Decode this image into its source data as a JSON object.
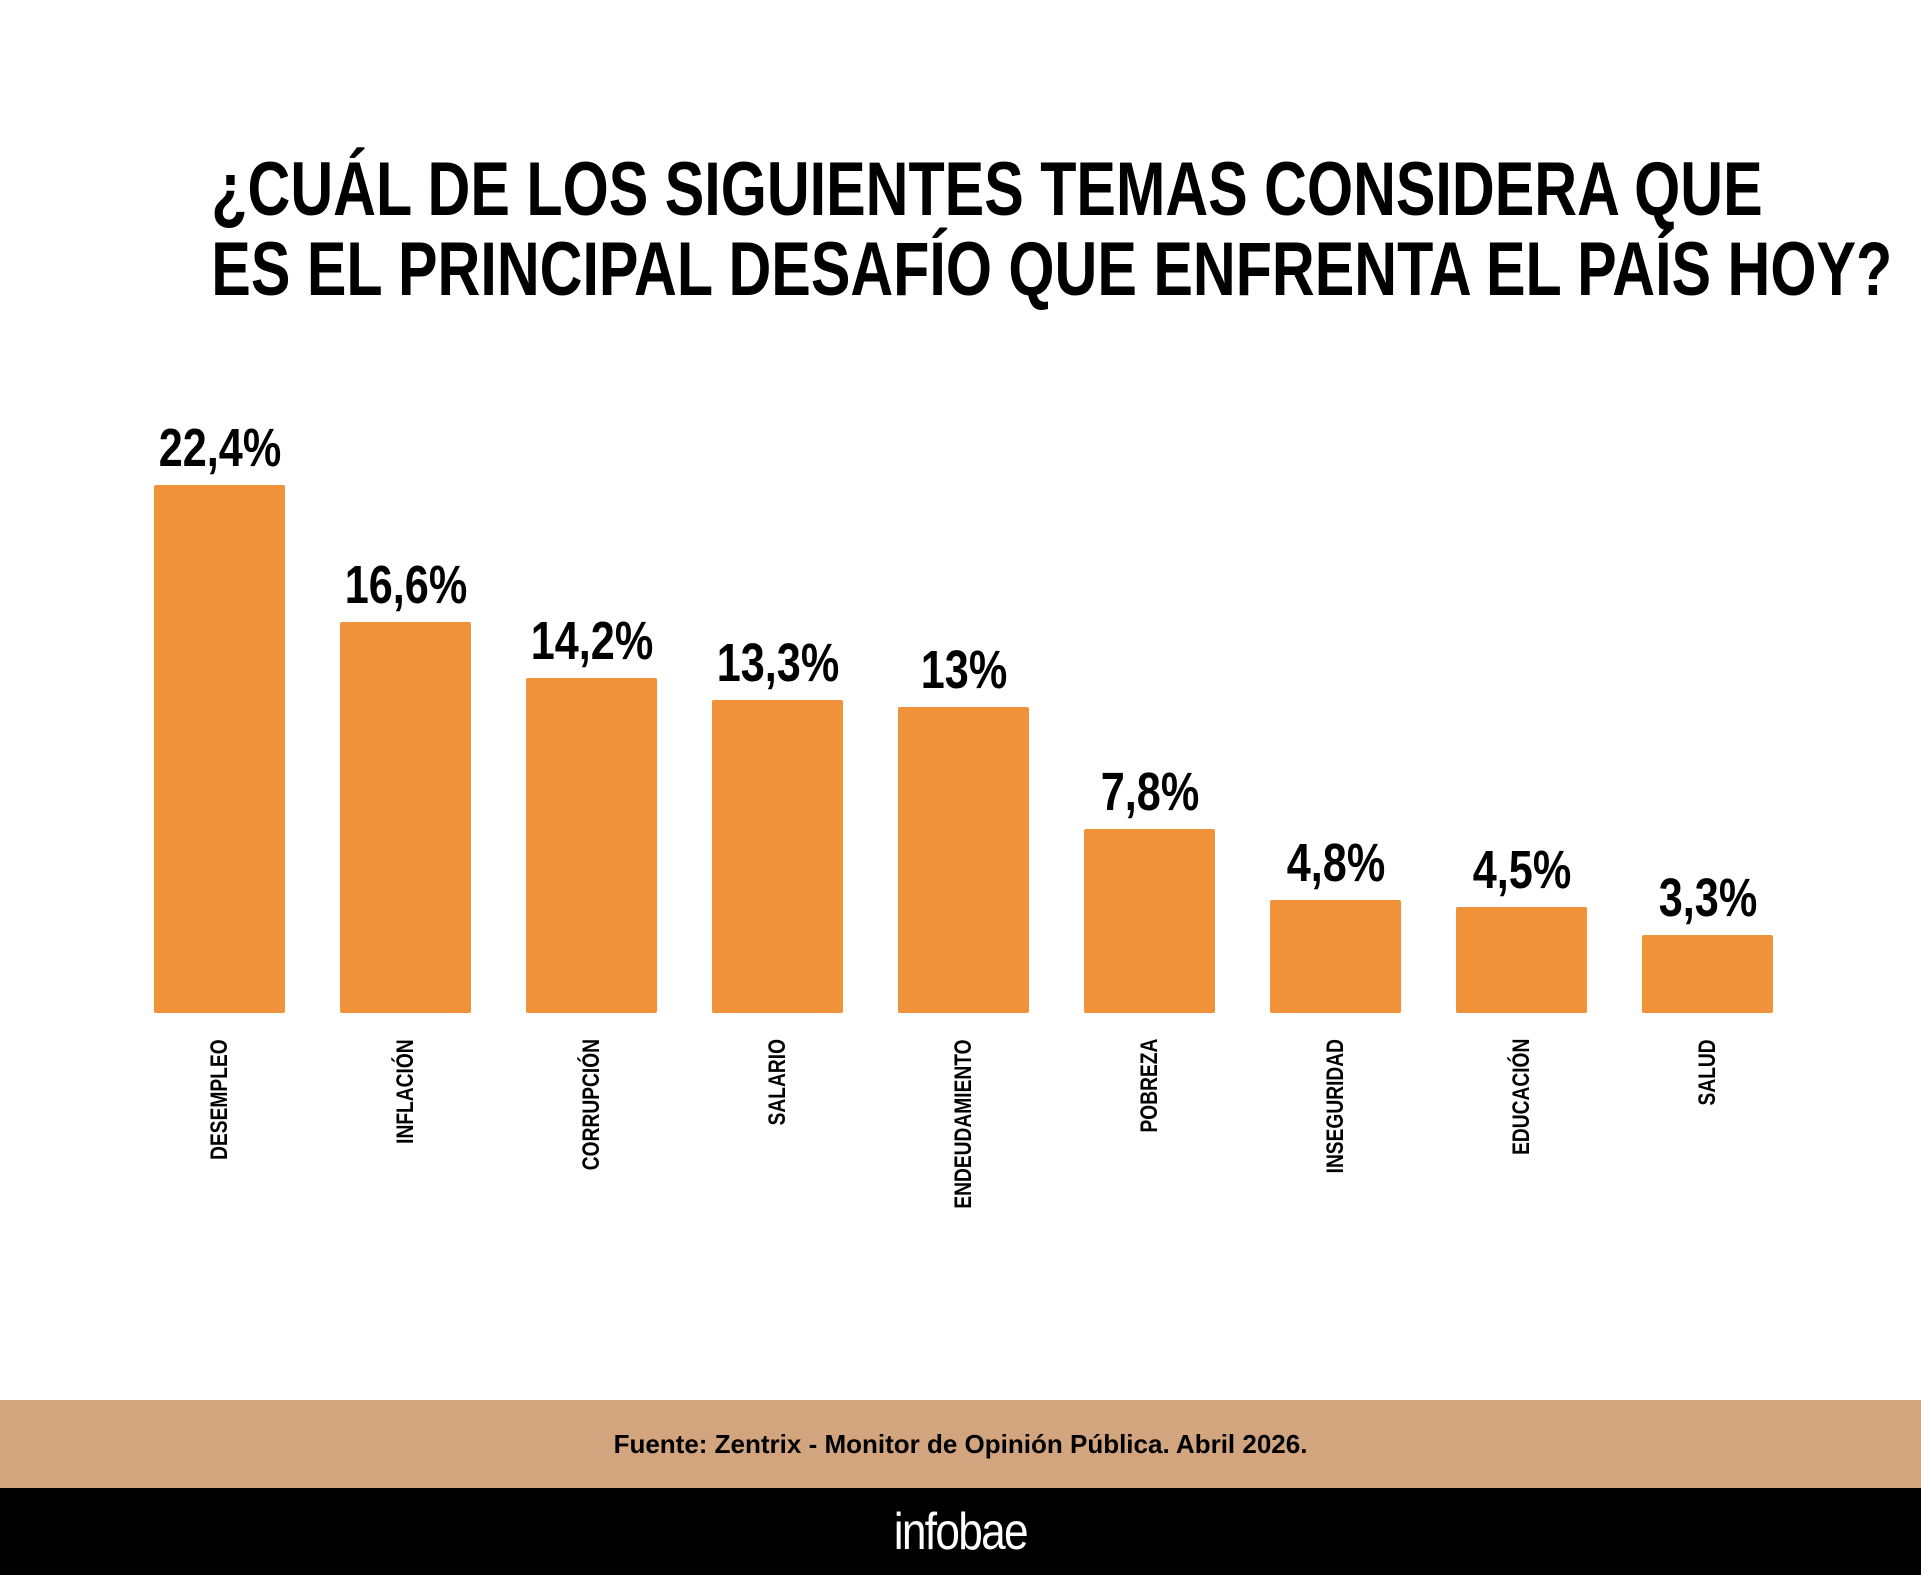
{
  "title": {
    "line1": "¿CUÁL DE LOS SIGUIENTES TEMAS CONSIDERA QUE",
    "line2": "ES EL PRINCIPAL DESAFÍO QUE ENFRENTA EL PAÍS HOY?"
  },
  "chart_data": {
    "type": "bar",
    "title": "¿CUÁL DE LOS SIGUIENTES TEMAS CONSIDERA QUE ES EL PRINCIPAL DESAFÍO QUE ENFRENTA EL PAÍS HOY?",
    "categories": [
      "DESEMPLEO",
      "INFLACIÓN",
      "CORRUPCIÓN",
      "SALARIO",
      "ENDEUDAMIENTO",
      "POBREZA",
      "INSEGURIDAD",
      "EDUCACIÓN",
      "SALUD"
    ],
    "values": [
      22.4,
      16.6,
      14.2,
      13.3,
      13,
      7.8,
      4.8,
      4.5,
      3.3
    ],
    "data_labels": [
      "22,4%",
      "16,6%",
      "14,2%",
      "13,3%",
      "13%",
      "7,8%",
      "4,8%",
      "4,5%",
      "3,3%"
    ],
    "xlabel": "",
    "ylabel": "",
    "ylim": [
      0,
      22.4
    ],
    "grid": false,
    "bar_color": "#F0923A"
  },
  "footer": {
    "source": "Fuente: Zentrix - Monitor de Opinión Pública. Abril 2026.",
    "logo": "infobae",
    "band_color": "#D2A57F"
  }
}
